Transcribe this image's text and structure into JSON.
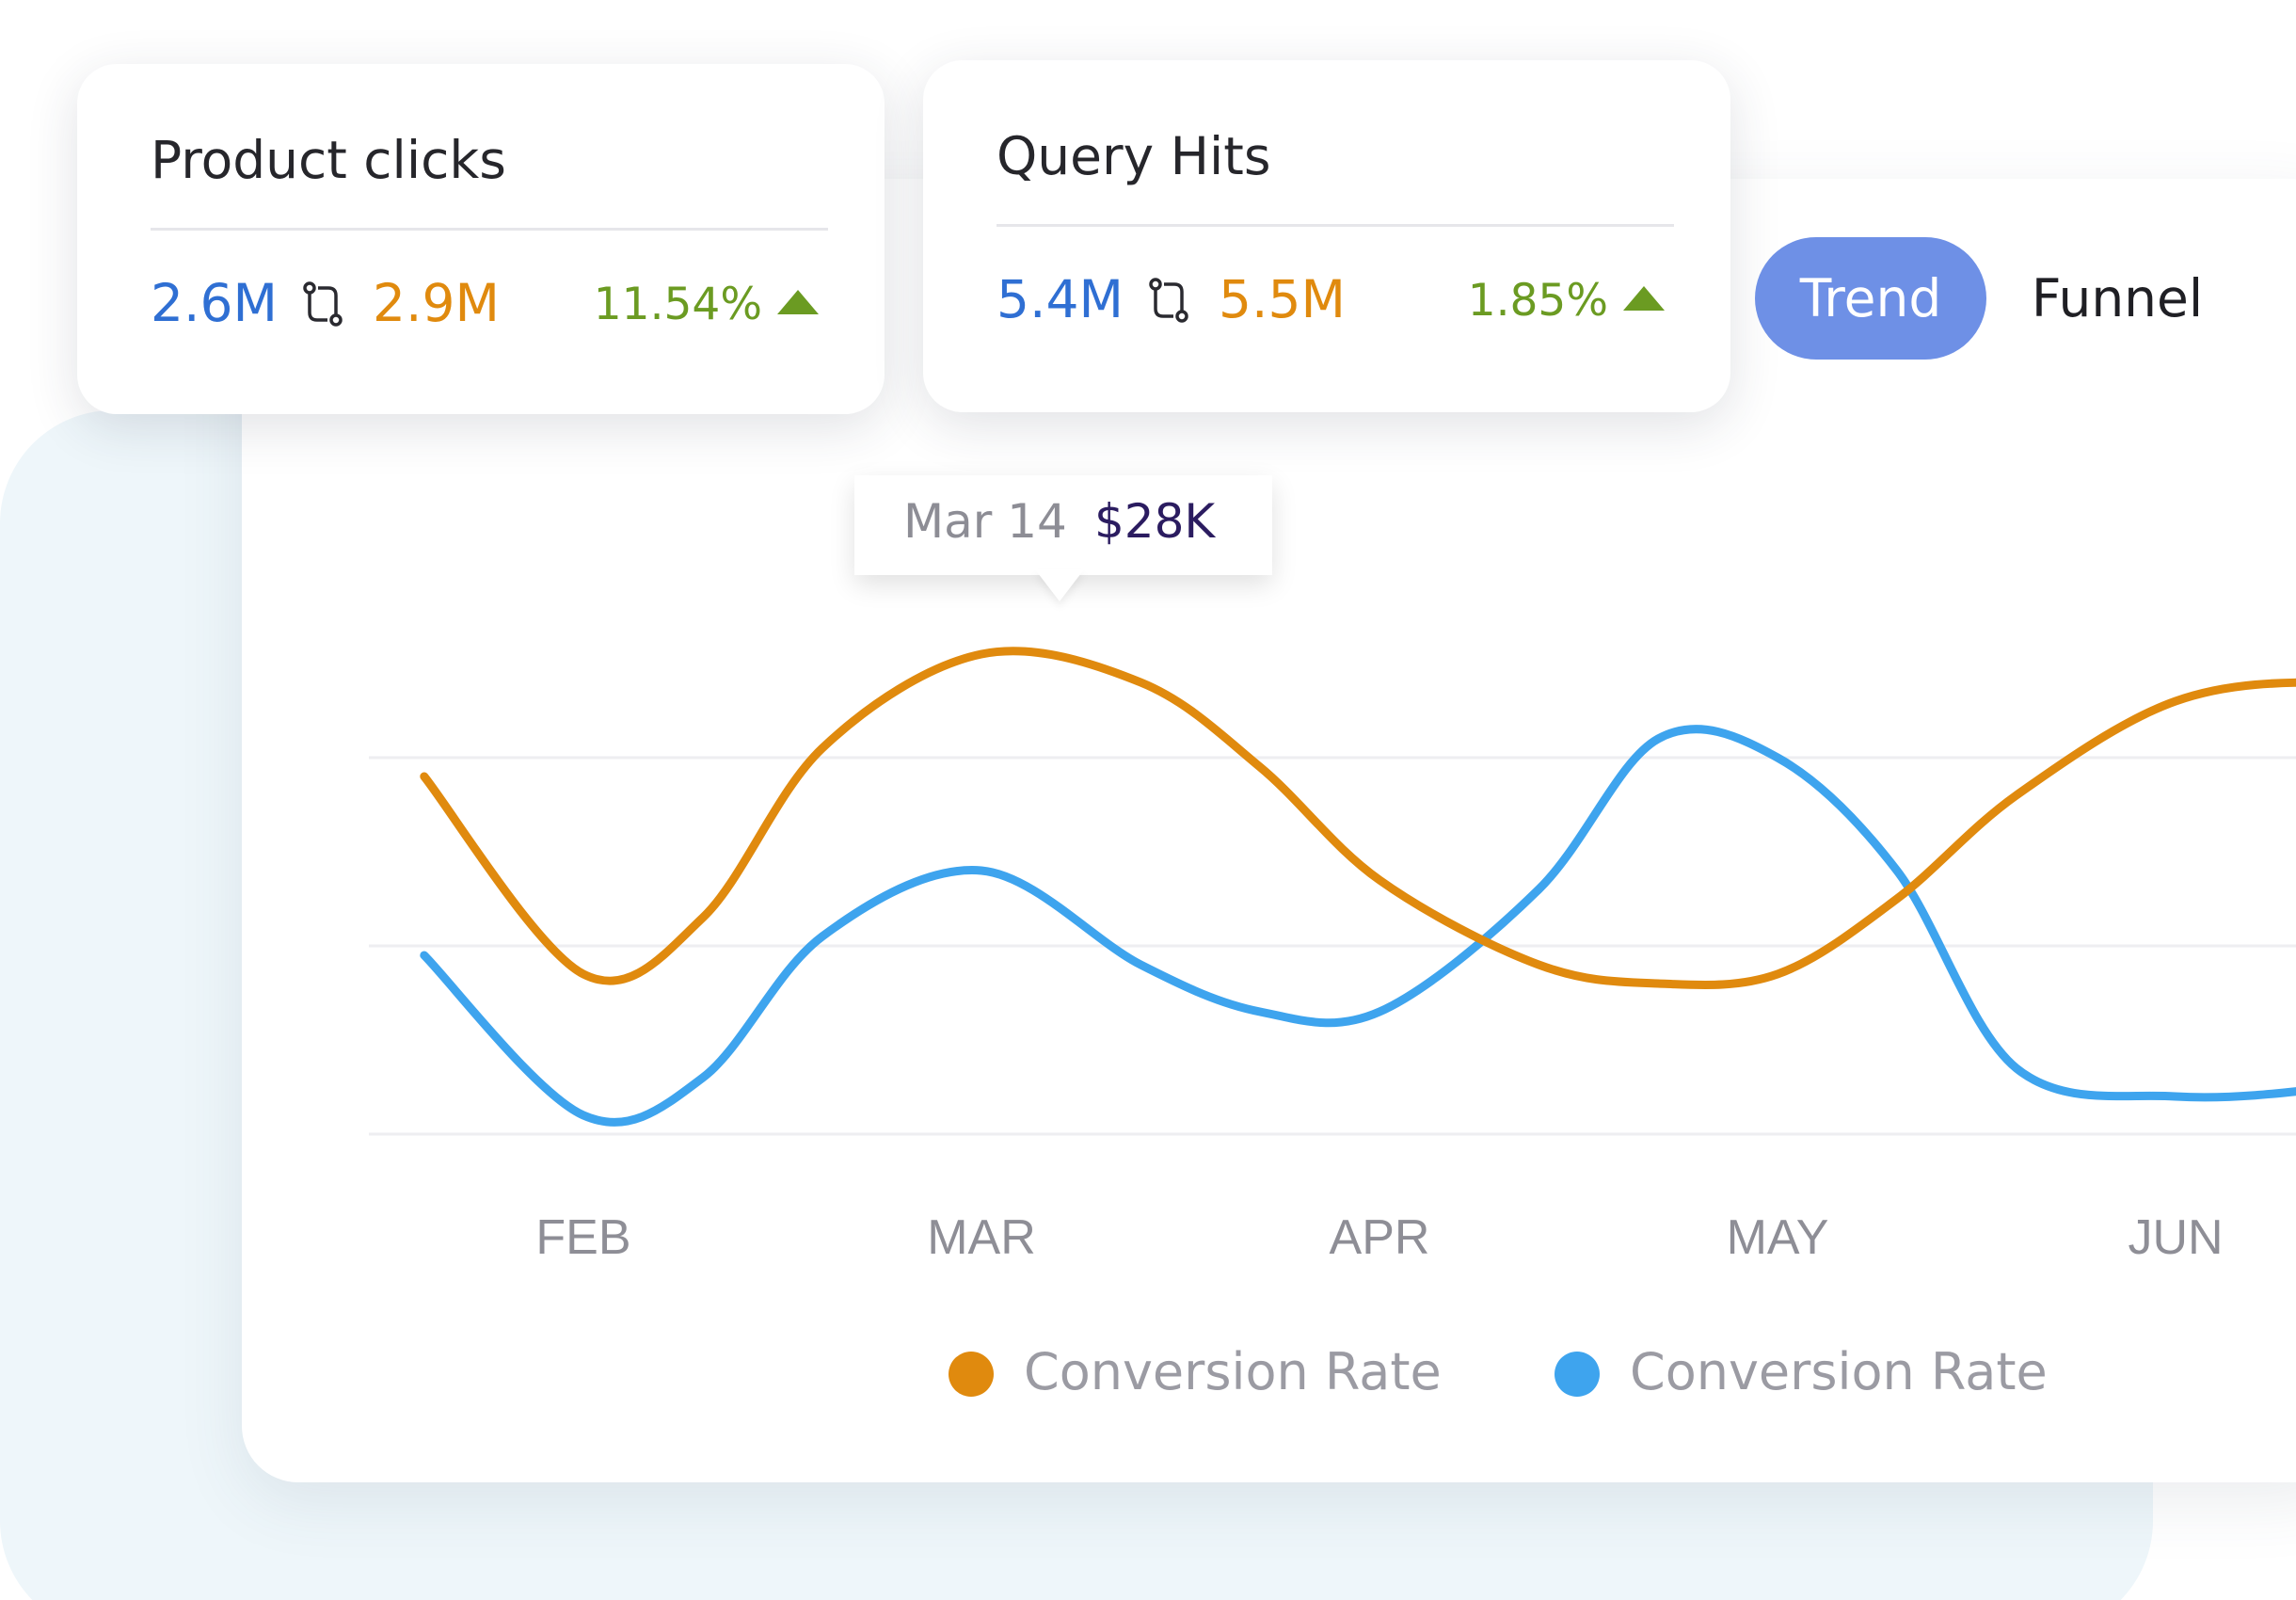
{
  "cards": [
    {
      "title": "Product clicks",
      "value_a": "2.6M",
      "value_b": "2.9M",
      "change": "11.54%",
      "icon": "compare-icon",
      "trend_icon": "triangle-up-icon"
    },
    {
      "title": "Query Hits",
      "value_a": "5.4M",
      "value_b": "5.5M",
      "change": "1.85%",
      "icon": "compare-icon",
      "trend_icon": "triangle-up-icon"
    }
  ],
  "toggle": {
    "trend": "Trend",
    "funnel": "Funnel",
    "active": "Trend"
  },
  "tooltip": {
    "date": "Mar 14",
    "value": "$28K"
  },
  "colors": {
    "orange": "#e08a0e",
    "blue": "#3ea4ee",
    "value_blue": "#2f6fd3",
    "positive": "#6b9b22",
    "toggle_active": "#6e90e6"
  },
  "chart_data": {
    "type": "line",
    "categories": [
      "FEB",
      "MAR",
      "APR",
      "MAY",
      "JUN"
    ],
    "x": [
      0.6,
      1.0,
      1.3,
      1.6,
      2.0,
      2.4,
      2.7,
      3.0,
      3.4,
      3.7,
      4.0,
      4.3,
      4.6,
      5.0,
      5.4,
      5.8
    ],
    "ylim": [
      0,
      30
    ],
    "series": [
      {
        "name": "Conversion Rate",
        "color": "#e08a0e",
        "values": [
          19,
          8.5,
          11.5,
          20.5,
          25.5,
          24,
          19.5,
          13.5,
          9,
          8,
          8.5,
          12.5,
          18,
          23,
          24,
          23
        ]
      },
      {
        "name": "Conversion Rate",
        "color": "#3ea4ee",
        "values": [
          9.5,
          1,
          3,
          10.5,
          14,
          9,
          6.5,
          6.5,
          13,
          21,
          20,
          14,
          3.5,
          2,
          2.5,
          4
        ]
      }
    ],
    "gridlines": 3,
    "grid": true,
    "legend": "bottom"
  }
}
